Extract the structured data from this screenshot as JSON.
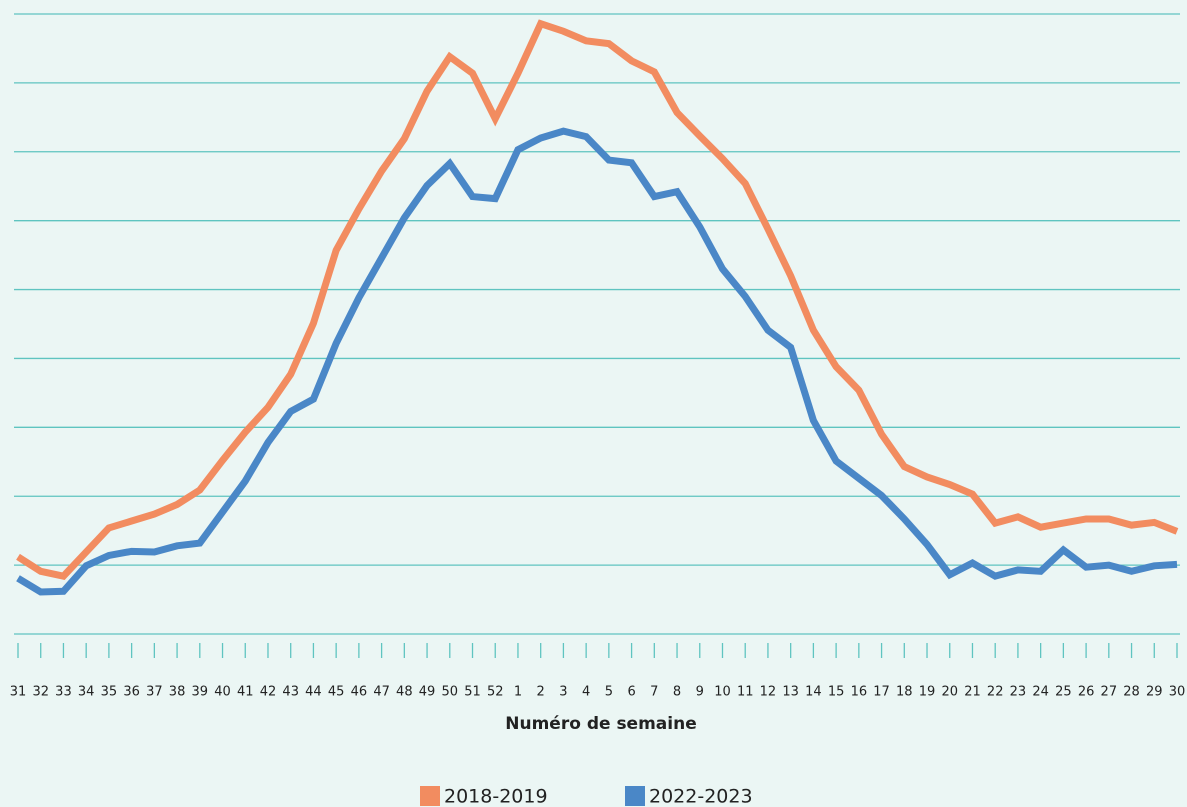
{
  "chart_data": {
    "type": "line",
    "xlabel": "Numéro de semaine",
    "categories": [
      "31",
      "32",
      "33",
      "34",
      "35",
      "36",
      "37",
      "38",
      "39",
      "40",
      "41",
      "42",
      "43",
      "44",
      "45",
      "46",
      "47",
      "48",
      "49",
      "50",
      "51",
      "52",
      "1",
      "2",
      "3",
      "4",
      "5",
      "6",
      "7",
      "8",
      "9",
      "10",
      "11",
      "12",
      "13",
      "14",
      "15",
      "16",
      "17",
      "18",
      "19",
      "20",
      "21",
      "22",
      "23",
      "24",
      "25",
      "26",
      "27",
      "28",
      "29",
      "30"
    ],
    "series": [
      {
        "name": "2018-2019",
        "color": "#f28c60",
        "values": [
          1.12,
          0.91,
          0.84,
          1.19,
          1.54,
          1.64,
          1.74,
          1.88,
          2.09,
          2.52,
          2.93,
          3.29,
          3.77,
          4.51,
          5.57,
          6.17,
          6.72,
          7.19,
          7.88,
          8.38,
          8.14,
          7.48,
          8.14,
          8.86,
          8.75,
          8.61,
          8.57,
          8.32,
          8.16,
          7.57,
          7.23,
          6.9,
          6.54,
          5.88,
          5.2,
          4.41,
          3.88,
          3.54,
          2.9,
          2.43,
          2.28,
          2.17,
          2.03,
          1.61,
          1.7,
          1.55,
          1.61,
          1.67,
          1.67,
          1.58,
          1.62,
          1.49
        ]
      },
      {
        "name": "2022-2023",
        "color": "#4a87c7",
        "values": [
          0.81,
          0.61,
          0.62,
          0.99,
          1.14,
          1.2,
          1.19,
          1.28,
          1.32,
          1.77,
          2.22,
          2.78,
          3.23,
          3.41,
          4.22,
          4.88,
          5.46,
          6.04,
          6.51,
          6.83,
          6.35,
          6.32,
          7.03,
          7.2,
          7.3,
          7.22,
          6.88,
          6.84,
          6.35,
          6.42,
          5.91,
          5.3,
          4.9,
          4.41,
          4.16,
          3.1,
          2.51,
          2.26,
          2.01,
          1.67,
          1.3,
          0.86,
          1.03,
          0.84,
          0.93,
          0.91,
          1.22,
          0.97,
          1.0,
          0.91,
          0.99,
          1.01
        ]
      }
    ],
    "ylim": [
      0,
      9
    ],
    "grid_lines": [
      1,
      2,
      3,
      4,
      5,
      6,
      7,
      8,
      9
    ],
    "grid_color": "#5fc4c0"
  }
}
